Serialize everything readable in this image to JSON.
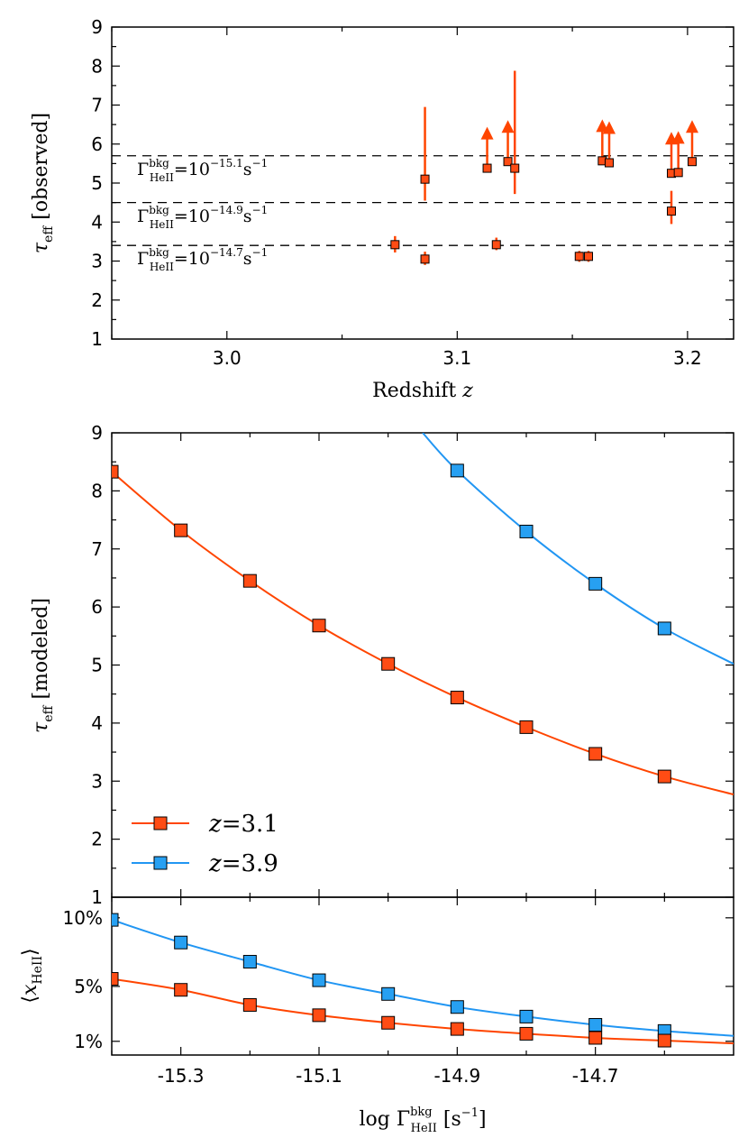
{
  "colors": {
    "orange": "#ff4500",
    "orange_marker": "#ff4c14",
    "blue": "#2196f3",
    "blue_marker": "#27a0f2"
  },
  "chart_data": [
    {
      "id": "observed",
      "type": "scatter",
      "xlabel": "Redshift z",
      "ylabel": "τ_eff [observed]",
      "xlim": [
        2.95,
        3.22
      ],
      "ylim": [
        1,
        9
      ],
      "xticks": [
        "3.0",
        "3.1",
        "3.2"
      ],
      "xtick_values": [
        3.0,
        3.1,
        3.2
      ],
      "yticks": [
        "1",
        "2",
        "3",
        "4",
        "5",
        "6",
        "7",
        "8",
        "9"
      ],
      "points": [
        {
          "x": 3.073,
          "y": 3.42,
          "ylo": 3.22,
          "yhi": 3.64
        },
        {
          "x": 3.086,
          "y": 3.05,
          "ylo": 2.9,
          "yhi": 3.24
        },
        {
          "x": 3.086,
          "y": 5.1,
          "ylo": 4.55,
          "yhi": 6.95
        },
        {
          "x": 3.113,
          "y": 5.38,
          "lower_limit": true
        },
        {
          "x": 3.117,
          "y": 3.42,
          "ylo": 3.28,
          "yhi": 3.6
        },
        {
          "x": 3.122,
          "y": 5.55,
          "lower_limit": true
        },
        {
          "x": 3.125,
          "y": 5.38,
          "ylo": 4.72,
          "yhi": 7.88
        },
        {
          "x": 3.153,
          "y": 3.12,
          "ylo": 2.98,
          "yhi": 3.26
        },
        {
          "x": 3.157,
          "y": 3.12,
          "ylo": 2.98,
          "yhi": 3.26
        },
        {
          "x": 3.163,
          "y": 5.57,
          "lower_limit": true
        },
        {
          "x": 3.166,
          "y": 5.52,
          "lower_limit": true
        },
        {
          "x": 3.193,
          "y": 5.25,
          "lower_limit": true
        },
        {
          "x": 3.193,
          "y": 4.28,
          "ylo": 3.95,
          "yhi": 4.8
        },
        {
          "x": 3.196,
          "y": 5.27,
          "lower_limit": true
        },
        {
          "x": 3.202,
          "y": 5.55,
          "lower_limit": true
        }
      ],
      "reference_lines": [
        {
          "y": 5.7,
          "label_symbol": "Γ",
          "label_super": "bkg",
          "label_sub": "HeII",
          "label_eq": "=10",
          "label_exp": "−15.1",
          "label_unit": "s",
          "label_unit_exp": "−1"
        },
        {
          "y": 4.5,
          "label_symbol": "Γ",
          "label_super": "bkg",
          "label_sub": "HeII",
          "label_eq": "=10",
          "label_exp": "−14.9",
          "label_unit": "s",
          "label_unit_exp": "−1"
        },
        {
          "y": 3.4,
          "label_symbol": "Γ",
          "label_super": "bkg",
          "label_sub": "HeII",
          "label_eq": "=10",
          "label_exp": "−14.7",
          "label_unit": "s",
          "label_unit_exp": "−1"
        }
      ]
    },
    {
      "id": "modeled",
      "type": "line",
      "ylabel": "τ_eff [modeled]",
      "xlim": [
        -15.4,
        -14.5
      ],
      "ylim": [
        1,
        9
      ],
      "yticks": [
        "1",
        "2",
        "3",
        "4",
        "5",
        "6",
        "7",
        "8",
        "9"
      ],
      "series": [
        {
          "name": "z = 3.1",
          "legend_var": "z",
          "legend_val": "=3.1",
          "color": "orange",
          "x": [
            -15.4,
            -15.3,
            -15.2,
            -15.1,
            -15.0,
            -14.9,
            -14.8,
            -14.7,
            -14.6
          ],
          "y": [
            8.33,
            7.32,
            6.45,
            5.68,
            5.02,
            4.44,
            3.93,
            3.47,
            3.08
          ],
          "curve_end": 2.77
        },
        {
          "name": "z = 3.9",
          "legend_var": "z",
          "legend_val": "=3.9",
          "color": "blue",
          "x": [
            -14.9,
            -14.8,
            -14.7,
            -14.6
          ],
          "y": [
            8.35,
            7.3,
            6.4,
            5.63
          ],
          "curve_start": {
            "x": -14.95,
            "y": 9.0
          },
          "curve_end": 5.02
        }
      ],
      "legend_position": "bottom-left"
    },
    {
      "id": "fraction",
      "type": "line",
      "xlabel": "log Γ_HeII^bkg [s^-1]",
      "ylabel": "⟨x_HeII⟩",
      "xlim": [
        -15.4,
        -14.5
      ],
      "ylim": [
        0.0,
        0.115
      ],
      "xticks": [
        "-15.3",
        "-15.1",
        "-14.9",
        "-14.7"
      ],
      "xtick_values": [
        -15.3,
        -15.1,
        -14.9,
        -14.7
      ],
      "yticks": [
        "1%",
        "5%",
        "10%"
      ],
      "ytick_values": [
        0.01,
        0.05,
        0.1
      ],
      "series": [
        {
          "name": "z = 3.1",
          "color": "orange",
          "x": [
            -15.4,
            -15.3,
            -15.2,
            -15.1,
            -15.0,
            -14.9,
            -14.8,
            -14.7,
            -14.6
          ],
          "y": [
            0.0555,
            0.0475,
            0.0365,
            0.029,
            0.0235,
            0.019,
            0.0155,
            0.0125,
            0.0105
          ],
          "curve_end": 0.0085
        },
        {
          "name": "z = 3.9",
          "color": "blue",
          "x": [
            -15.4,
            -15.3,
            -15.2,
            -15.1,
            -15.0,
            -14.9,
            -14.8,
            -14.7,
            -14.6
          ],
          "y": [
            0.0985,
            0.082,
            0.068,
            0.0545,
            0.0445,
            0.035,
            0.028,
            0.022,
            0.0175
          ],
          "curve_end": 0.014
        }
      ]
    }
  ],
  "labels": {
    "p1_xlabel_text": "Redshift",
    "p1_xlabel_var": "z",
    "p1_ylabel_sym": "τ",
    "p1_ylabel_sub": "eff",
    "p1_ylabel_text": "[observed]",
    "p2_ylabel_sym": "τ",
    "p2_ylabel_sub": "eff",
    "p2_ylabel_text": "[modeled]",
    "p3_ylabel_open": "⟨",
    "p3_ylabel_var": "x",
    "p3_ylabel_sub": "HeII",
    "p3_ylabel_close": "⟩",
    "p3_xlabel_log": "log",
    "p3_xlabel_sym": "Γ",
    "p3_xlabel_super": "bkg",
    "p3_xlabel_sub": "HeII",
    "p3_xlabel_unit": "[s",
    "p3_xlabel_unit_exp": "−1",
    "p3_xlabel_close": "]"
  }
}
